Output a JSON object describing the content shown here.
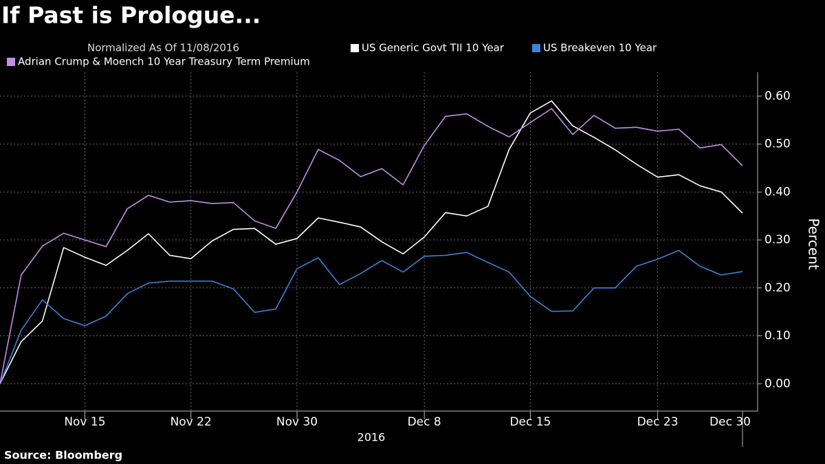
{
  "chart_data": {
    "type": "line",
    "title": "If Past is Prologue...",
    "subtitle": "Normalized As Of 11/08/2016",
    "y_axis_label": "Percent",
    "x_axis_label": "2016",
    "source": "Source: Bloomberg",
    "categories": [
      null,
      null,
      null,
      null,
      "Nov 15",
      null,
      null,
      null,
      null,
      "Nov 22",
      null,
      null,
      null,
      null,
      "Nov 30",
      null,
      null,
      null,
      null,
      null,
      "Dec 8",
      null,
      null,
      null,
      null,
      "Dec 15",
      null,
      null,
      null,
      null,
      null,
      "Dec 23",
      null,
      null,
      null,
      "Dec 30"
    ],
    "ylim": [
      -0.057,
      0.65
    ],
    "yticks": [
      {
        "value": 0,
        "label": "0.00"
      },
      {
        "value": 0.1,
        "label": "0.10"
      },
      {
        "value": 0.2,
        "label": "0.20"
      },
      {
        "value": 0.3,
        "label": "0.30"
      },
      {
        "value": 0.4,
        "label": "0.40"
      },
      {
        "value": 0.5,
        "label": "0.50"
      },
      {
        "value": 0.6,
        "label": "0.60"
      }
    ],
    "grid": true,
    "series": [
      {
        "name": "US Generic Govt TII 10 Year",
        "color": "#ffffff",
        "values": [
          0,
          0.088,
          0.131,
          0.284,
          0.264,
          0.247,
          0.278,
          0.313,
          0.268,
          0.261,
          0.298,
          0.322,
          0.324,
          0.291,
          0.303,
          0.346,
          0.337,
          0.327,
          0.296,
          0.271,
          0.306,
          0.357,
          0.35,
          0.37,
          0.489,
          0.565,
          0.59,
          0.538,
          0.514,
          0.488,
          0.458,
          0.431,
          0.436,
          0.413,
          0.4,
          0.356
        ]
      },
      {
        "name": "US Breakeven 10 Year",
        "color": "#3b84d9",
        "values": [
          0,
          0.112,
          0.175,
          0.136,
          0.121,
          0.141,
          0.188,
          0.21,
          0.214,
          0.214,
          0.214,
          0.198,
          0.149,
          0.156,
          0.24,
          0.263,
          0.207,
          0.23,
          0.257,
          0.233,
          0.266,
          0.268,
          0.274,
          0.253,
          0.233,
          0.182,
          0.151,
          0.152,
          0.2,
          0.2,
          0.245,
          0.26,
          0.278,
          0.245,
          0.227,
          0.234
        ]
      },
      {
        "name": "Adrian Crump & Moench 10 Year Treasury Term Premium",
        "color": "#c38ee8",
        "values": [
          0,
          0.227,
          0.287,
          0.314,
          0.3,
          0.286,
          0.365,
          0.393,
          0.379,
          0.382,
          0.376,
          0.378,
          0.34,
          0.324,
          0.4,
          0.489,
          0.466,
          0.432,
          0.449,
          0.415,
          0.497,
          0.558,
          0.563,
          0.537,
          0.515,
          0.545,
          0.574,
          0.52,
          0.56,
          0.533,
          0.535,
          0.527,
          0.531,
          0.492,
          0.499,
          0.455
        ]
      }
    ]
  }
}
